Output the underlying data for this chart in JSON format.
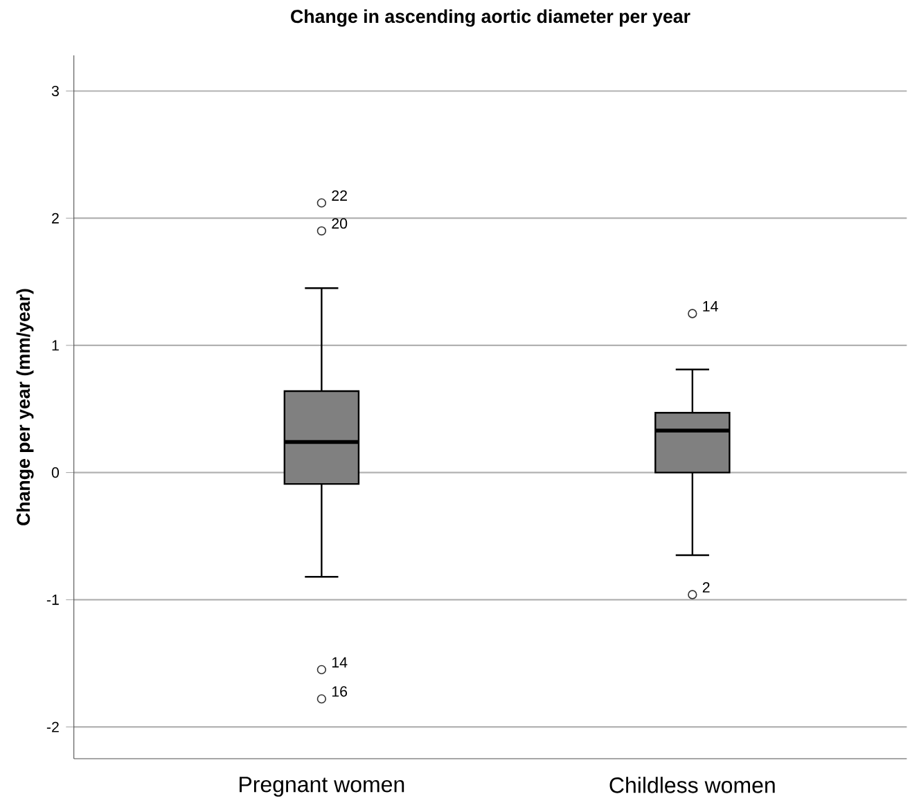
{
  "chart_data": {
    "type": "box",
    "title": "Change in ascending aortic diameter per year",
    "ylabel": "Change per year (mm/year)",
    "categories": [
      "Pregnant women",
      "Childless women"
    ],
    "boxes": [
      {
        "low": -0.82,
        "q1": -0.09,
        "median": 0.24,
        "q3": 0.64,
        "high": 1.45,
        "outliers": [
          2.12,
          1.9,
          -1.55,
          -1.78
        ]
      },
      {
        "low": -0.65,
        "q1": 0.0,
        "median": 0.33,
        "q3": 0.47,
        "high": 0.81,
        "outliers": [
          1.25,
          -0.96
        ]
      }
    ],
    "color": "#808080",
    "marker": "circle",
    "grid": "y",
    "ylim": [
      -2.25,
      3.28
    ],
    "yticks": [
      -2,
      -1,
      0,
      1,
      2,
      3
    ],
    "annotations": [
      "22",
      "20",
      "14",
      "16",
      "14",
      "2"
    ]
  }
}
